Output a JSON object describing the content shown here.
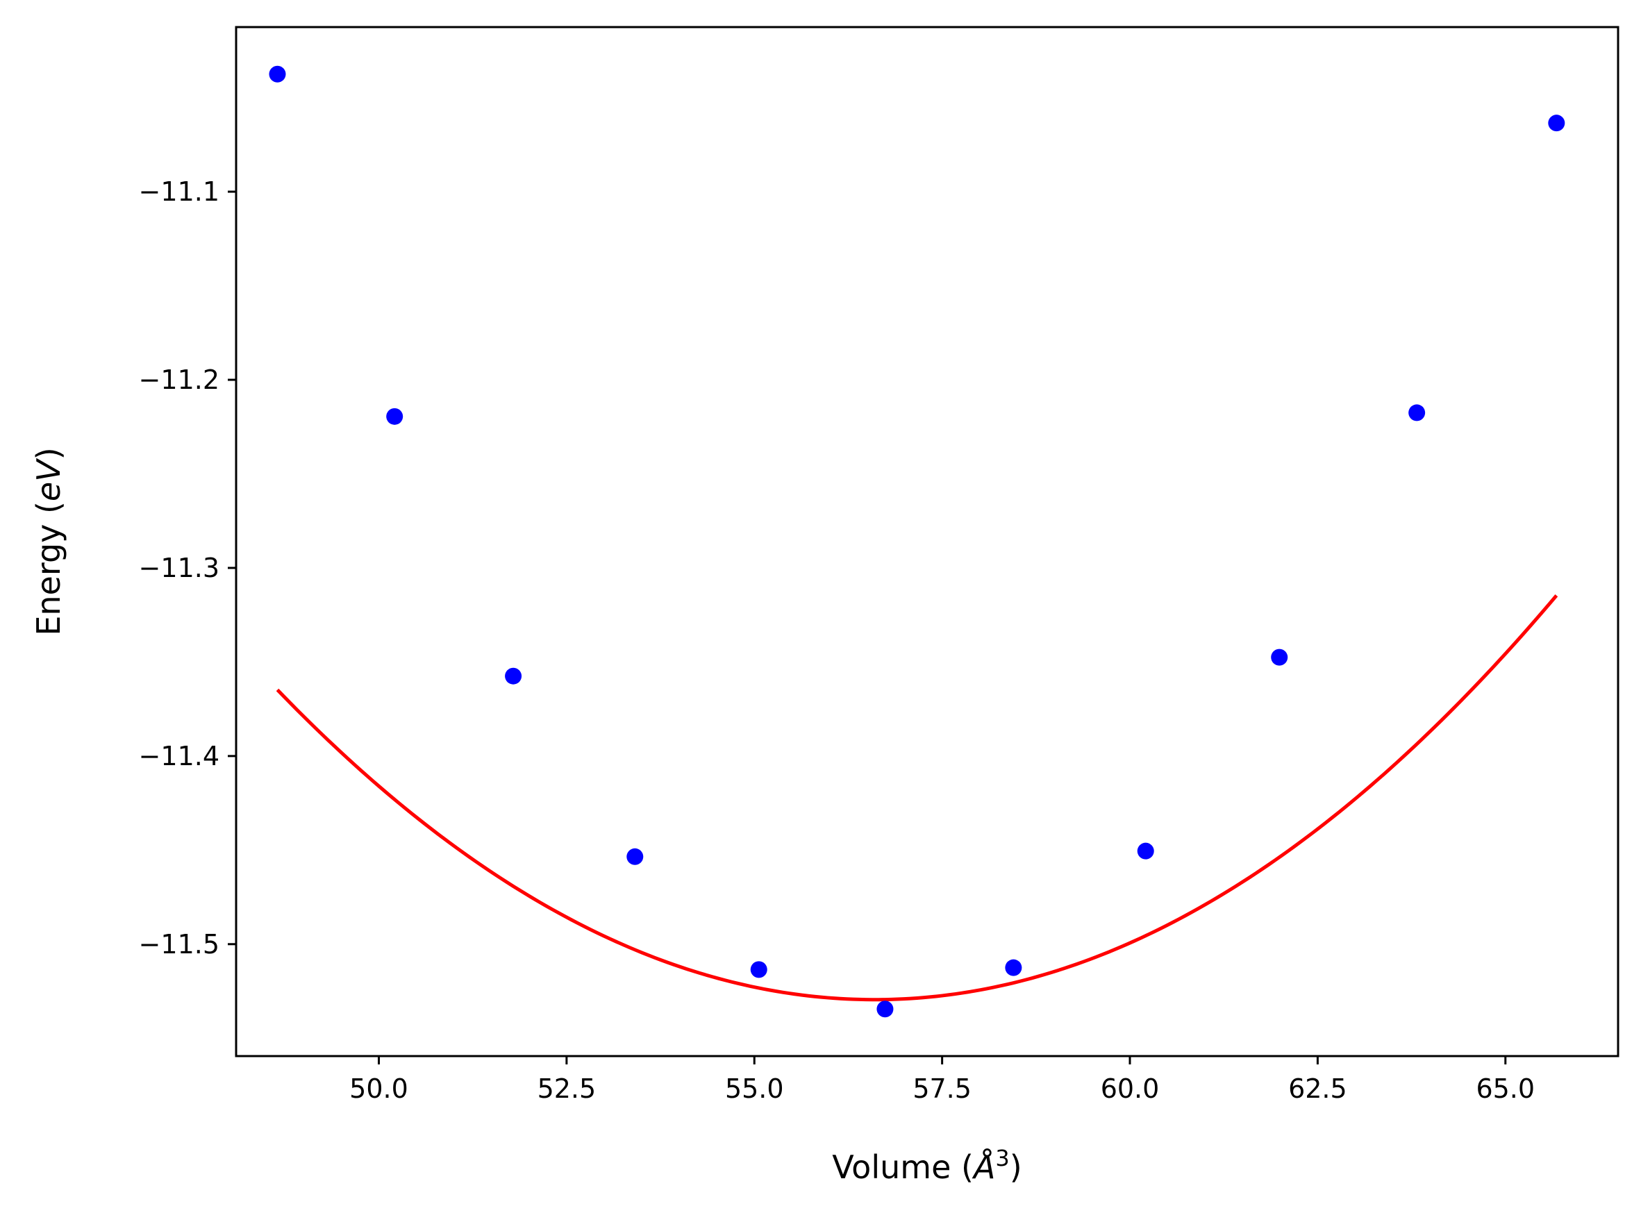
{
  "chart_data": {
    "type": "line",
    "title": "",
    "xlabel": "Volume (",
    "xlabel_symbol": "Å",
    "xlabel_exp": "3",
    "xlabel_close": ")",
    "ylabel": "Energy (",
    "ylabel_unit": "eV",
    "ylabel_close": ")",
    "xlim": [
      48.1,
      66.5
    ],
    "ylim": [
      -11.5595,
      -11.0125
    ],
    "x_ticks": [
      50.0,
      52.5,
      55.0,
      57.5,
      60.0,
      62.5,
      65.0
    ],
    "x_tick_labels": [
      "50.0",
      "52.5",
      "55.0",
      "57.5",
      "60.0",
      "62.5",
      "65.0"
    ],
    "y_ticks": [
      -11.1,
      -11.2,
      -11.3,
      -11.4,
      -11.5
    ],
    "y_tick_labels": [
      "−11.1",
      "−11.2",
      "−11.3",
      "−11.4",
      "−11.5"
    ],
    "grid": false,
    "series": [
      {
        "kind": "scatter",
        "color": "#0000ff",
        "x": [
          48.65,
          50.21,
          51.79,
          53.41,
          55.06,
          56.74,
          58.45,
          60.21,
          61.99,
          63.82,
          65.68
        ],
        "values": [
          -11.0375,
          -11.2195,
          -11.3575,
          -11.4535,
          -11.5135,
          -11.5345,
          -11.5125,
          -11.4505,
          -11.3475,
          -11.2175,
          -11.0635
        ]
      },
      {
        "kind": "line",
        "color": "#ff0000",
        "model": "quadratic-fit",
        "coefficients": {
          "a": 0.002606,
          "x0": 56.6,
          "y0": -11.5295
        },
        "xrange": [
          48.65,
          65.68
        ]
      }
    ]
  }
}
